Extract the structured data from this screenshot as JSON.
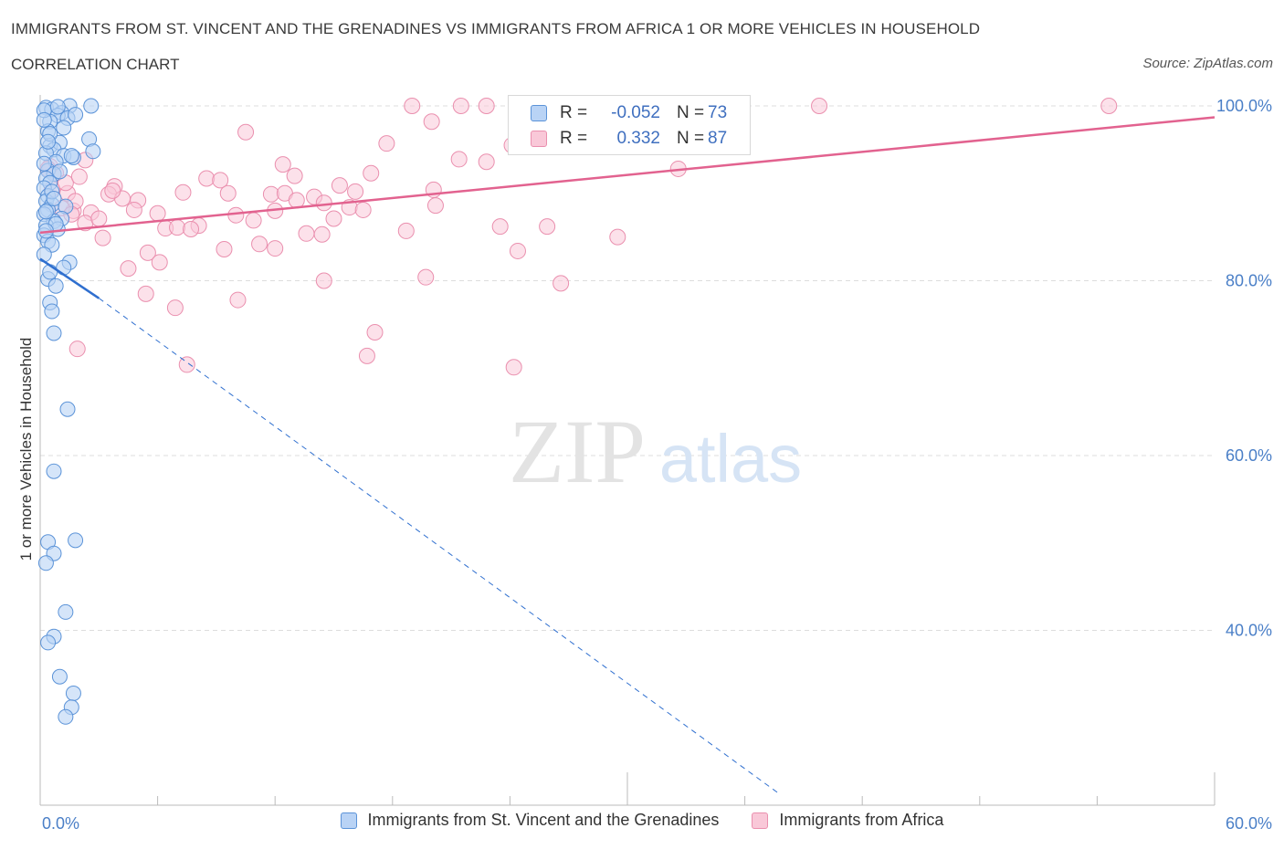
{
  "header": {
    "title": "IMMIGRANTS FROM ST. VINCENT AND THE GRENADINES VS IMMIGRANTS FROM AFRICA 1 OR MORE VEHICLES IN HOUSEHOLD",
    "subtitle": "CORRELATION CHART",
    "source": "Source: ZipAtlas.com"
  },
  "watermark": {
    "zip": "ZIP",
    "atlas": "atlas"
  },
  "stats": {
    "r_label": "R =",
    "n_label": "N =",
    "series1": {
      "r": "-0.052",
      "n": "73"
    },
    "series2": {
      "r": "0.332",
      "n": "87"
    }
  },
  "colors": {
    "series1_fill": "#b9d3f5",
    "series1_stroke": "#5b93d8",
    "series1_line": "#2f6fcf",
    "series2_fill": "#f9c8d8",
    "series2_stroke": "#ea8fae",
    "series2_line": "#e2628f",
    "tick_color": "#4a7fc7",
    "grid": "#dddddd"
  },
  "chart_data": {
    "type": "scatter",
    "title": "IMMIGRANTS FROM ST. VINCENT AND THE GRENADINES VS IMMIGRANTS FROM AFRICA 1 OR MORE VEHICLES IN HOUSEHOLD",
    "ylabel": "1 or more Vehicles in Household",
    "xlabel": "",
    "xlim": [
      0,
      60
    ],
    "ylim": [
      20,
      100
    ],
    "grid": true,
    "legend_position": "bottom-center",
    "x_tick_labels": [
      "0.0%",
      "60.0%"
    ],
    "y_ticks": [
      100,
      80,
      60,
      40
    ],
    "y_tick_labels": [
      "100.0%",
      "80.0%",
      "60.0%",
      "40.0%"
    ],
    "series": [
      {
        "name": "Immigrants from St. Vincent and the Grenadines",
        "trend": {
          "solid": [
            [
              0,
              82.5
            ],
            [
              3,
              78.0
            ]
          ],
          "dashed": [
            [
              3,
              78.0
            ],
            [
              37.7,
              21.4
            ]
          ]
        },
        "points": [
          [
            0.3,
            99.8
          ],
          [
            0.6,
            99.6
          ],
          [
            1.5,
            100.0
          ],
          [
            2.6,
            100.0
          ],
          [
            1.1,
            99.2
          ],
          [
            0.9,
            98.9
          ],
          [
            1.4,
            98.6
          ],
          [
            0.5,
            98.2
          ],
          [
            1.2,
            97.5
          ],
          [
            0.4,
            97.1
          ],
          [
            2.5,
            96.2
          ],
          [
            0.5,
            95.4
          ],
          [
            1.0,
            95.8
          ],
          [
            0.7,
            95.0
          ],
          [
            0.3,
            94.6
          ],
          [
            1.2,
            94.3
          ],
          [
            1.7,
            94.1
          ],
          [
            2.7,
            94.8
          ],
          [
            0.8,
            93.6
          ],
          [
            0.4,
            92.6
          ],
          [
            0.7,
            92.2
          ],
          [
            0.3,
            91.7
          ],
          [
            0.5,
            91.2
          ],
          [
            0.2,
            90.6
          ],
          [
            0.4,
            89.7
          ],
          [
            0.3,
            89.1
          ],
          [
            0.6,
            88.7
          ],
          [
            1.3,
            88.5
          ],
          [
            0.4,
            88.1
          ],
          [
            0.2,
            87.6
          ],
          [
            1.1,
            87.1
          ],
          [
            0.7,
            86.8
          ],
          [
            0.3,
            86.3
          ],
          [
            0.9,
            85.9
          ],
          [
            0.2,
            85.2
          ],
          [
            0.4,
            84.5
          ],
          [
            0.6,
            84.1
          ],
          [
            1.5,
            82.1
          ],
          [
            1.2,
            81.5
          ],
          [
            0.4,
            80.2
          ],
          [
            0.8,
            79.4
          ],
          [
            0.5,
            77.5
          ],
          [
            0.6,
            76.5
          ],
          [
            0.7,
            74.0
          ],
          [
            1.4,
            65.3
          ],
          [
            0.7,
            58.2
          ],
          [
            1.8,
            50.3
          ],
          [
            0.4,
            50.1
          ],
          [
            0.7,
            48.8
          ],
          [
            0.3,
            47.7
          ],
          [
            1.3,
            42.1
          ],
          [
            0.7,
            39.3
          ],
          [
            0.4,
            38.6
          ],
          [
            1.0,
            34.7
          ],
          [
            1.7,
            32.8
          ],
          [
            1.6,
            31.2
          ],
          [
            1.3,
            30.1
          ],
          [
            0.2,
            99.5
          ],
          [
            0.9,
            99.9
          ],
          [
            1.8,
            99.0
          ],
          [
            0.5,
            96.8
          ],
          [
            0.2,
            93.4
          ],
          [
            0.6,
            90.2
          ],
          [
            0.3,
            87.9
          ],
          [
            0.8,
            86.5
          ],
          [
            0.2,
            83.0
          ],
          [
            0.5,
            81.0
          ],
          [
            1.0,
            92.5
          ],
          [
            0.4,
            95.9
          ],
          [
            0.2,
            98.4
          ],
          [
            0.7,
            89.4
          ],
          [
            0.3,
            85.7
          ],
          [
            1.6,
            94.3
          ]
        ]
      },
      {
        "name": "Immigrants from Africa",
        "trend": {
          "solid": [
            [
              0,
              85.5
            ],
            [
              60,
              98.7
            ]
          ]
        },
        "points": [
          [
            19.0,
            100.0
          ],
          [
            21.5,
            100.0
          ],
          [
            22.8,
            100.0
          ],
          [
            29.5,
            100.0
          ],
          [
            33.4,
            100.0
          ],
          [
            39.8,
            100.0
          ],
          [
            54.6,
            100.0
          ],
          [
            20.0,
            98.2
          ],
          [
            10.5,
            97.0
          ],
          [
            17.7,
            95.7
          ],
          [
            21.4,
            93.9
          ],
          [
            22.8,
            93.6
          ],
          [
            24.1,
            95.5
          ],
          [
            12.4,
            93.3
          ],
          [
            32.6,
            92.8
          ],
          [
            16.9,
            92.3
          ],
          [
            13.0,
            92.0
          ],
          [
            8.5,
            91.7
          ],
          [
            9.2,
            91.5
          ],
          [
            3.8,
            90.8
          ],
          [
            15.3,
            90.9
          ],
          [
            20.1,
            90.4
          ],
          [
            1.4,
            90.0
          ],
          [
            3.5,
            89.9
          ],
          [
            7.3,
            90.1
          ],
          [
            9.6,
            90.0
          ],
          [
            11.8,
            89.9
          ],
          [
            12.5,
            90.0
          ],
          [
            14.0,
            89.6
          ],
          [
            16.1,
            90.2
          ],
          [
            4.2,
            89.4
          ],
          [
            5.0,
            89.2
          ],
          [
            13.1,
            89.2
          ],
          [
            14.5,
            88.9
          ],
          [
            20.2,
            88.6
          ],
          [
            1.7,
            88.0
          ],
          [
            2.6,
            87.8
          ],
          [
            4.8,
            88.1
          ],
          [
            6.0,
            87.7
          ],
          [
            12.0,
            88.0
          ],
          [
            15.8,
            88.4
          ],
          [
            16.5,
            88.1
          ],
          [
            10.0,
            87.5
          ],
          [
            15.0,
            87.1
          ],
          [
            10.9,
            86.9
          ],
          [
            8.1,
            86.3
          ],
          [
            2.3,
            86.6
          ],
          [
            6.4,
            86.0
          ],
          [
            7.0,
            86.1
          ],
          [
            7.7,
            85.9
          ],
          [
            18.7,
            85.7
          ],
          [
            23.5,
            86.2
          ],
          [
            25.9,
            86.2
          ],
          [
            13.6,
            85.4
          ],
          [
            14.4,
            85.3
          ],
          [
            29.5,
            85.0
          ],
          [
            3.2,
            84.9
          ],
          [
            11.2,
            84.2
          ],
          [
            12.0,
            83.7
          ],
          [
            9.4,
            83.6
          ],
          [
            24.4,
            83.4
          ],
          [
            5.5,
            83.2
          ],
          [
            6.1,
            82.1
          ],
          [
            4.5,
            81.4
          ],
          [
            14.5,
            80.0
          ],
          [
            19.7,
            80.4
          ],
          [
            26.6,
            79.7
          ],
          [
            5.4,
            78.5
          ],
          [
            10.1,
            77.8
          ],
          [
            6.9,
            76.9
          ],
          [
            17.1,
            74.1
          ],
          [
            1.9,
            72.2
          ],
          [
            16.7,
            71.4
          ],
          [
            7.5,
            70.4
          ],
          [
            24.2,
            70.1
          ],
          [
            0.8,
            92.3
          ],
          [
            1.3,
            91.2
          ],
          [
            2.3,
            93.8
          ],
          [
            0.5,
            93.1
          ],
          [
            1.8,
            89.1
          ],
          [
            3.0,
            87.1
          ],
          [
            0.6,
            90.5
          ],
          [
            1.1,
            88.3
          ],
          [
            3.7,
            90.3
          ],
          [
            2.0,
            91.9
          ],
          [
            0.4,
            92.8
          ],
          [
            1.6,
            87.6
          ]
        ]
      }
    ]
  },
  "legend": {
    "series1": "Immigrants from St. Vincent and the Grenadines",
    "series2": "Immigrants from Africa"
  }
}
